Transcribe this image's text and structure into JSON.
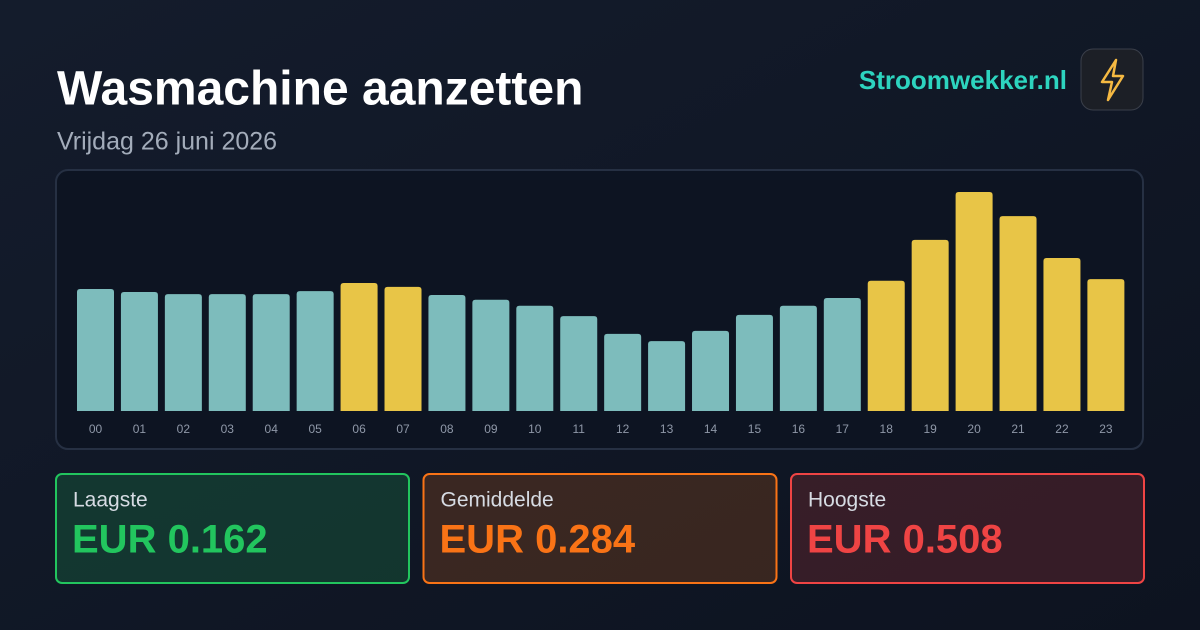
{
  "header": {
    "title": "Wasmachine aanzetten",
    "subtitle": "Vrijdag 26 juni 2026",
    "brand": "Stroomwekker.nl"
  },
  "chart_data": {
    "type": "bar",
    "categories": [
      "00",
      "01",
      "02",
      "03",
      "04",
      "05",
      "06",
      "07",
      "08",
      "09",
      "10",
      "11",
      "12",
      "13",
      "14",
      "15",
      "16",
      "17",
      "18",
      "19",
      "20",
      "21",
      "22",
      "23"
    ],
    "values": [
      0.283,
      0.276,
      0.271,
      0.271,
      0.271,
      0.278,
      0.297,
      0.288,
      0.269,
      0.258,
      0.244,
      0.22,
      0.179,
      0.162,
      0.186,
      0.223,
      0.244,
      0.262,
      0.302,
      0.397,
      0.508,
      0.452,
      0.355,
      0.306
    ],
    "colors": [
      "#7dbcbc",
      "#7dbcbc",
      "#7dbcbc",
      "#7dbcbc",
      "#7dbcbc",
      "#7dbcbc",
      "#e8c547",
      "#e8c547",
      "#7dbcbc",
      "#7dbcbc",
      "#7dbcbc",
      "#7dbcbc",
      "#7dbcbc",
      "#7dbcbc",
      "#7dbcbc",
      "#7dbcbc",
      "#7dbcbc",
      "#7dbcbc",
      "#e8c547",
      "#e8c547",
      "#e8c547",
      "#e8c547",
      "#e8c547",
      "#e8c547"
    ],
    "ylim": [
      0,
      0.508
    ]
  },
  "stats": [
    {
      "label": "Laagste",
      "value": "EUR 0.162",
      "color": "#22c55e"
    },
    {
      "label": "Gemiddelde",
      "value": "EUR 0.284",
      "color": "#f97316"
    },
    {
      "label": "Hoogste",
      "value": "EUR 0.508",
      "color": "#ef4444"
    }
  ]
}
